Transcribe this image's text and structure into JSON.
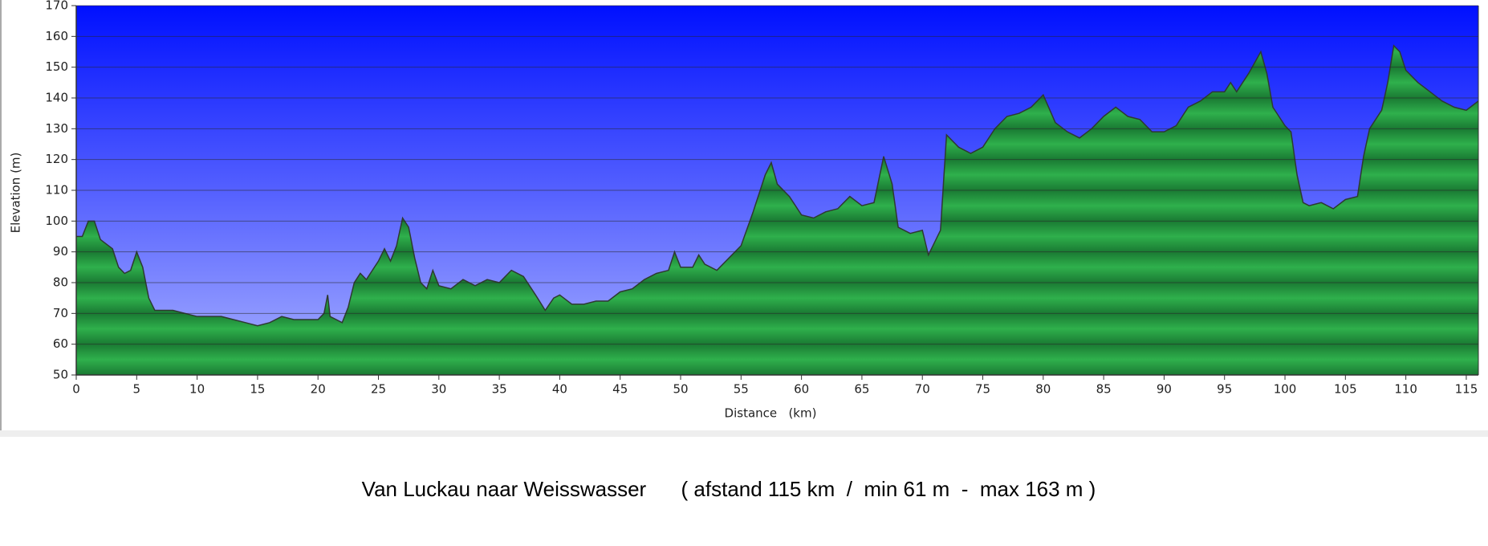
{
  "chart_data": {
    "type": "area",
    "title": "Van Luckau naar Weisswasser      ( afstand 115 km  /  min 61 m  -  max 163 m )",
    "x_label": "Distance   (km)",
    "y_label": "Elevation (m)",
    "x": [
      0,
      0.5,
      1,
      1.5,
      2,
      3,
      3.5,
      4,
      4.5,
      5,
      5.5,
      6,
      6.5,
      7,
      8,
      9,
      10,
      11,
      12,
      13,
      14,
      15,
      16,
      17,
      18,
      19,
      20,
      20.5,
      20.8,
      21,
      22,
      22.5,
      23,
      23.5,
      24,
      25,
      25.5,
      26,
      26.5,
      27,
      27.5,
      28,
      28.5,
      29,
      29.5,
      30,
      31,
      32,
      33,
      34,
      35,
      36,
      37,
      38,
      38.8,
      39.5,
      40,
      41,
      42,
      43,
      44,
      45,
      46,
      47,
      48,
      49,
      49.5,
      50,
      51,
      51.5,
      52,
      53,
      54,
      55,
      56,
      57,
      57.5,
      58,
      59,
      60,
      61,
      62,
      63,
      64,
      65,
      66,
      66.8,
      67.5,
      68,
      69,
      70,
      70.5,
      71,
      71.5,
      72,
      73,
      74,
      75,
      76,
      77,
      78,
      79,
      80,
      81,
      82,
      83,
      84,
      85,
      86,
      87,
      88,
      89,
      90,
      91,
      92,
      93,
      94,
      95,
      95.5,
      96,
      97,
      98,
      98.5,
      99,
      100,
      100.5,
      101,
      101.5,
      102,
      103,
      104,
      105,
      106,
      106.5,
      107,
      108,
      108.5,
      109,
      109.5,
      110,
      111,
      112,
      113,
      114,
      115,
      116
    ],
    "values": [
      95,
      95,
      100,
      100,
      94,
      91,
      85,
      83,
      84,
      90,
      85,
      75,
      71,
      71,
      71,
      70,
      69,
      69,
      69,
      68,
      67,
      66,
      67,
      69,
      68,
      68,
      68,
      70,
      76,
      69,
      67,
      72,
      80,
      83,
      81,
      87,
      91,
      87,
      92,
      101,
      98,
      88,
      80,
      78,
      84,
      79,
      78,
      81,
      79,
      81,
      80,
      84,
      82,
      76,
      71,
      75,
      76,
      73,
      73,
      74,
      74,
      77,
      78,
      81,
      83,
      84,
      90,
      85,
      85,
      89,
      86,
      84,
      88,
      92,
      103,
      115,
      119,
      112,
      108,
      102,
      101,
      103,
      104,
      108,
      105,
      106,
      121,
      112,
      98,
      96,
      97,
      89,
      93,
      97,
      128,
      124,
      122,
      124,
      130,
      134,
      135,
      137,
      141,
      132,
      129,
      127,
      130,
      134,
      137,
      134,
      133,
      129,
      129,
      131,
      137,
      139,
      142,
      142,
      145,
      142,
      148,
      155,
      148,
      137,
      131,
      129,
      115,
      106,
      105,
      106,
      104,
      107,
      108,
      121,
      130,
      136,
      145,
      157,
      155,
      149,
      145,
      142,
      139,
      137,
      136,
      139
    ],
    "color": "#1fa040",
    "xlim": [
      0,
      116
    ],
    "ylim": [
      50,
      170
    ],
    "xticks": [
      0,
      5,
      10,
      15,
      20,
      25,
      30,
      35,
      40,
      45,
      50,
      55,
      60,
      65,
      70,
      75,
      80,
      85,
      90,
      95,
      100,
      105,
      110,
      115
    ],
    "yticks": [
      50,
      60,
      70,
      80,
      90,
      100,
      110,
      120,
      130,
      140,
      150,
      160,
      170
    ],
    "grid": true
  }
}
